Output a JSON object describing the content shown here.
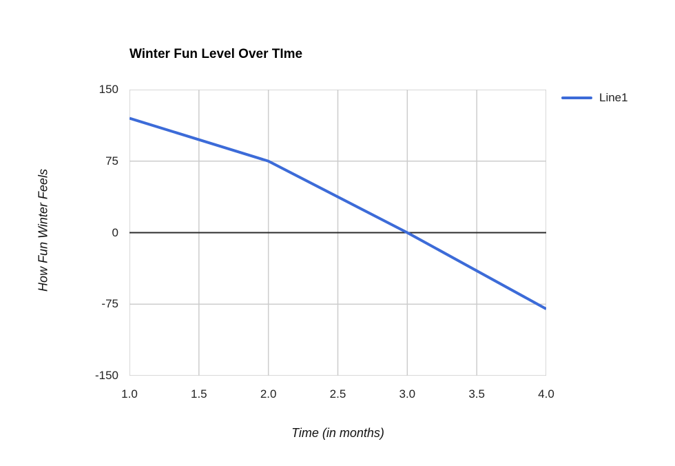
{
  "chart_data": {
    "type": "line",
    "title": "Winter Fun Level Over TIme",
    "xlabel": "Time (in months)",
    "ylabel": "How Fun Winter Feels",
    "x": [
      1.0,
      2.0,
      3.0,
      4.0
    ],
    "series": [
      {
        "name": "Line1",
        "values": [
          120,
          75,
          0,
          -80
        ]
      }
    ],
    "x_ticks": [
      "1.0",
      "1.5",
      "2.0",
      "2.5",
      "3.0",
      "3.5",
      "4.0"
    ],
    "x_tick_values": [
      1.0,
      1.5,
      2.0,
      2.5,
      3.0,
      3.5,
      4.0
    ],
    "y_ticks": [
      "150",
      "75",
      "0",
      "-75",
      "-150"
    ],
    "y_tick_values": [
      150,
      75,
      0,
      -75,
      -150
    ],
    "xlim": [
      1.0,
      4.0
    ],
    "ylim": [
      -150,
      150
    ],
    "grid": true,
    "legend_position": "right",
    "colors": {
      "series_line": "#3c6bd8",
      "grid_line": "#cccccc",
      "zero_line": "#2b2b2b",
      "text": "#222222",
      "background": "#ffffff"
    }
  }
}
